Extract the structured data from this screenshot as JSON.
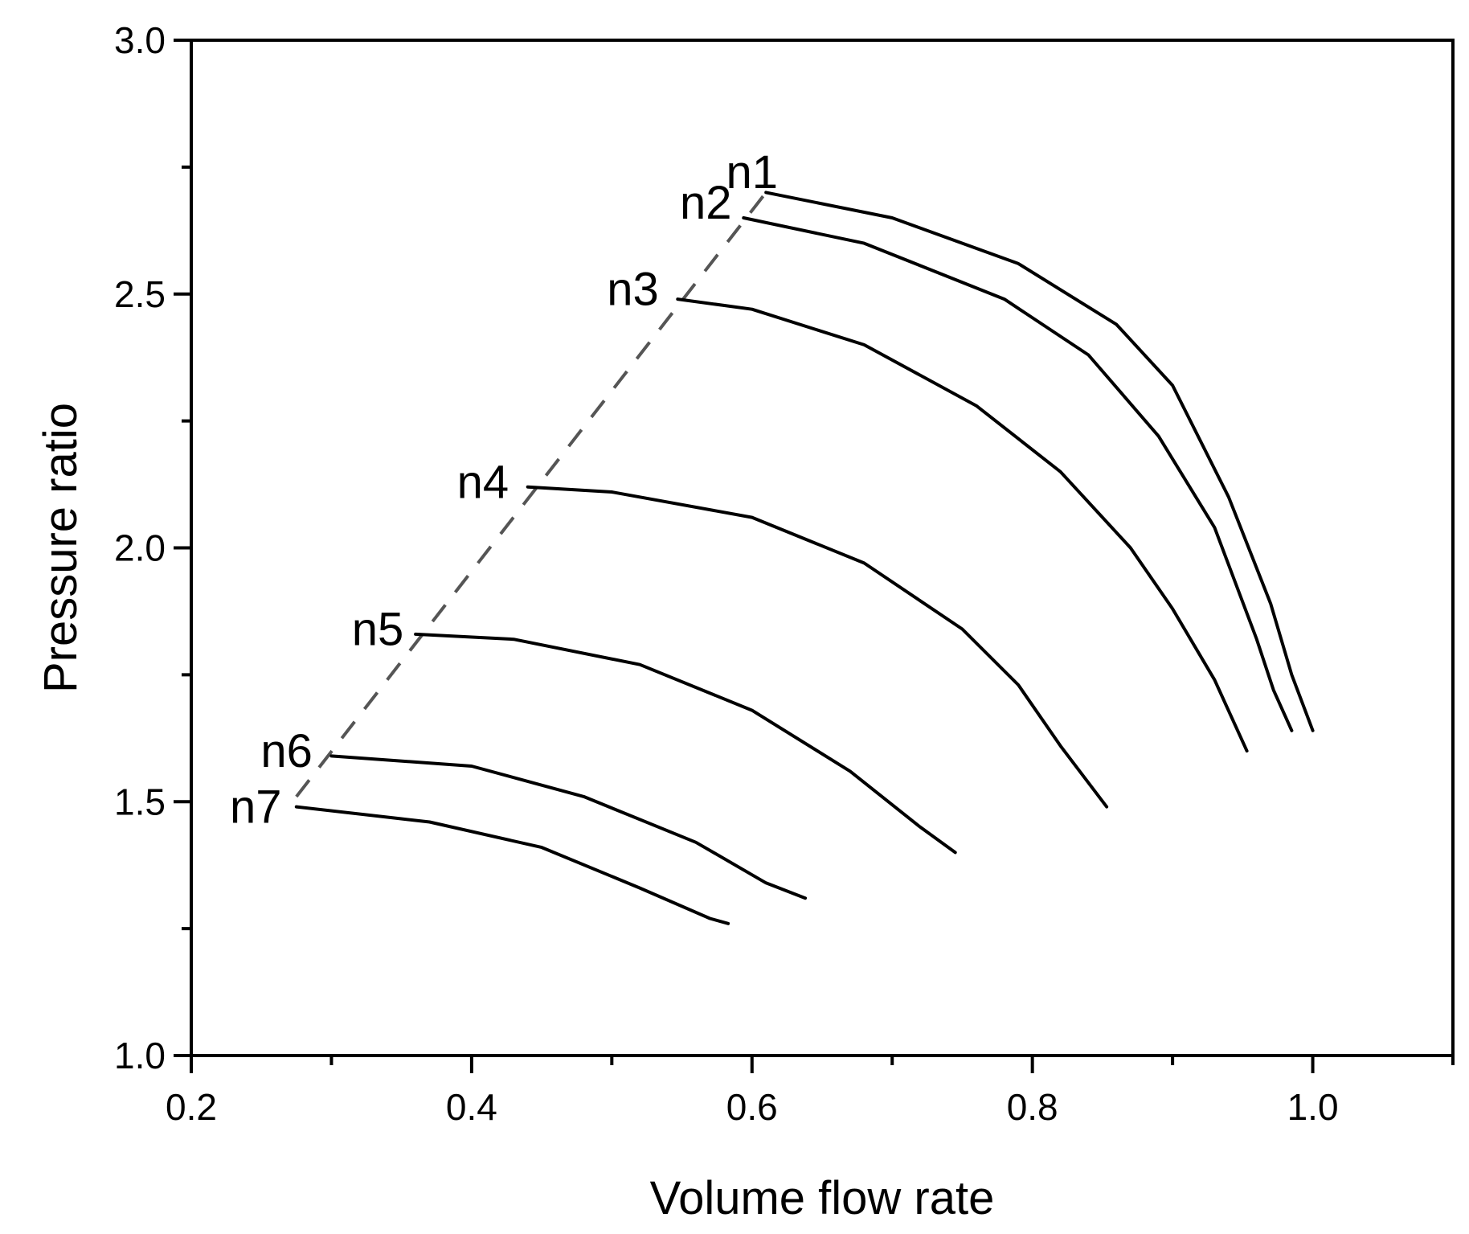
{
  "chart_data": {
    "type": "line",
    "title": "",
    "xlabel": "Volume flow rate",
    "ylabel": "Pressure ratio",
    "xlim": [
      0.2,
      1.1
    ],
    "ylim": [
      1.0,
      3.0
    ],
    "xticks": {
      "major": [
        0.2,
        0.4,
        0.6,
        0.8,
        1.0
      ],
      "minor": [
        0.3,
        0.5,
        0.7,
        0.9,
        1.1
      ],
      "labels": [
        "0.2",
        "0.4",
        "0.6",
        "0.8",
        "1.0"
      ]
    },
    "yticks": {
      "major": [
        1.0,
        1.5,
        2.0,
        2.5,
        3.0
      ],
      "minor": [
        1.25,
        1.75,
        2.25,
        2.75
      ],
      "labels": [
        "1.0",
        "1.5",
        "2.0",
        "2.5",
        "3.0"
      ]
    },
    "grid": false,
    "legend": "none",
    "colors": {
      "curves": "#000000",
      "surge_line": "#555555",
      "axes": "#000000"
    },
    "series": [
      {
        "name": "n1",
        "x": [
          0.61,
          0.7,
          0.79,
          0.86,
          0.9,
          0.94,
          0.97,
          0.985,
          1.0
        ],
        "y": [
          2.7,
          2.65,
          2.56,
          2.44,
          2.32,
          2.1,
          1.89,
          1.75,
          1.64
        ]
      },
      {
        "name": "n2",
        "x": [
          0.594,
          0.68,
          0.78,
          0.84,
          0.89,
          0.93,
          0.96,
          0.972,
          0.985
        ],
        "y": [
          2.65,
          2.6,
          2.49,
          2.38,
          2.22,
          2.04,
          1.82,
          1.72,
          1.64
        ]
      },
      {
        "name": "n3",
        "x": [
          0.547,
          0.6,
          0.68,
          0.76,
          0.82,
          0.87,
          0.9,
          0.93,
          0.953
        ],
        "y": [
          2.49,
          2.47,
          2.4,
          2.28,
          2.15,
          2.0,
          1.88,
          1.74,
          1.6
        ]
      },
      {
        "name": "n4",
        "x": [
          0.44,
          0.5,
          0.6,
          0.68,
          0.75,
          0.79,
          0.82,
          0.853
        ],
        "y": [
          2.12,
          2.11,
          2.06,
          1.97,
          1.84,
          1.73,
          1.61,
          1.49
        ]
      },
      {
        "name": "n5",
        "x": [
          0.36,
          0.43,
          0.52,
          0.6,
          0.67,
          0.72,
          0.745
        ],
        "y": [
          1.83,
          1.82,
          1.77,
          1.68,
          1.56,
          1.45,
          1.4
        ]
      },
      {
        "name": "n6",
        "x": [
          0.3,
          0.4,
          0.48,
          0.56,
          0.61,
          0.638
        ],
        "y": [
          1.59,
          1.57,
          1.51,
          1.42,
          1.34,
          1.31
        ]
      },
      {
        "name": "n7",
        "x": [
          0.275,
          0.37,
          0.45,
          0.52,
          0.57,
          0.583
        ],
        "y": [
          1.49,
          1.46,
          1.41,
          1.33,
          1.27,
          1.26
        ]
      }
    ],
    "surge_line": {
      "style": "dashed",
      "x": [
        0.275,
        0.61
      ],
      "y": [
        1.51,
        2.7
      ]
    },
    "annotations": [
      {
        "text": "n1",
        "x": 0.6,
        "y": 2.74
      },
      {
        "text": "n2",
        "x": 0.567,
        "y": 2.68
      },
      {
        "text": "n3",
        "x": 0.515,
        "y": 2.51
      },
      {
        "text": "n4",
        "x": 0.408,
        "y": 2.13
      },
      {
        "text": "n5",
        "x": 0.333,
        "y": 1.84
      },
      {
        "text": "n6",
        "x": 0.268,
        "y": 1.6
      },
      {
        "text": "n7",
        "x": 0.246,
        "y": 1.49
      }
    ]
  }
}
